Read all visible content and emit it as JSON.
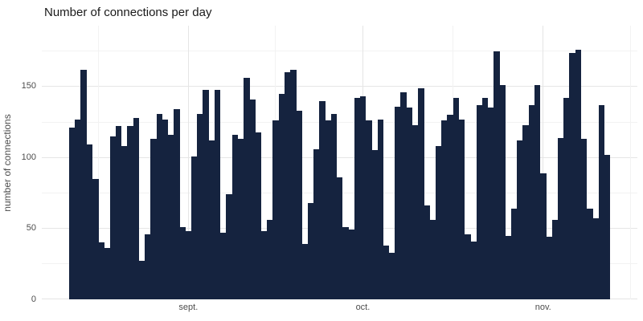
{
  "title": "Number of connections per day",
  "colors": {
    "bar": "#15233f",
    "grid_major": "#e5e5e5",
    "grid_minor": "#f2f2f2",
    "axis_text": "#4d4d4d",
    "title_text": "#1a1a1a",
    "background": "#ffffff"
  },
  "chart_data": {
    "type": "bar",
    "title": "Number of connections per day",
    "xlabel": "",
    "ylabel": "number of connections",
    "x_tick_labels": [
      "sept.",
      "oct.",
      "nov."
    ],
    "x_tick_day_index": [
      20,
      50,
      81
    ],
    "x_minor_day_positions": [
      5,
      35.5,
      66,
      96.5
    ],
    "y_ticks": [
      0,
      50,
      100,
      150
    ],
    "y_minor_ticks": [
      25,
      75,
      125,
      175
    ],
    "ylim": [
      0,
      193
    ],
    "xlim_days": [
      -4.7,
      97.7
    ],
    "grid": true,
    "legend_position": "none",
    "values": [
      121,
      127,
      162,
      109,
      85,
      40,
      36,
      115,
      122,
      108,
      122,
      128,
      27,
      46,
      113,
      131,
      127,
      116,
      134,
      51,
      48,
      101,
      131,
      148,
      112,
      148,
      47,
      74,
      116,
      113,
      156,
      141,
      118,
      48,
      56,
      126,
      145,
      160,
      162,
      133,
      39,
      68,
      106,
      140,
      126,
      131,
      86,
      51,
      49,
      142,
      143,
      126,
      105,
      127,
      38,
      33,
      136,
      146,
      135,
      123,
      149,
      66,
      56,
      108,
      126,
      130,
      142,
      127,
      46,
      41,
      137,
      142,
      135,
      175,
      151,
      45,
      64,
      112,
      123,
      137,
      151,
      89,
      44,
      56,
      114,
      142,
      174,
      176,
      113,
      64,
      57,
      137,
      102
    ]
  }
}
